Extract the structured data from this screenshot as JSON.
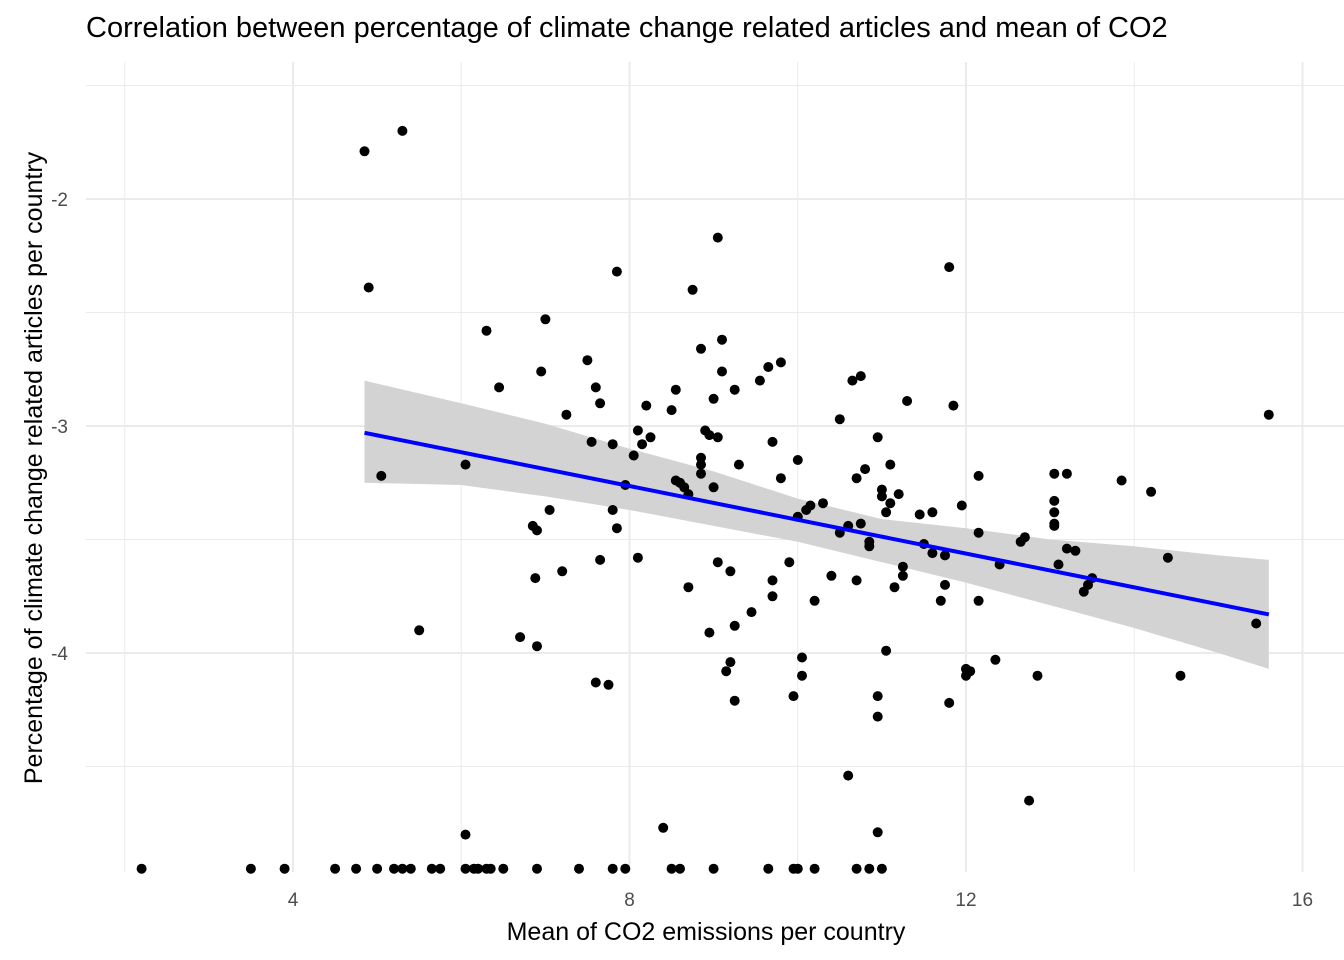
{
  "chart_data": {
    "type": "scatter",
    "title": "Correlation between percentage of climate change related articles and mean of CO2",
    "xlabel": "Mean of CO2 emissions per country",
    "ylabel": "Percentage of climate change related articles per country",
    "xlim": [
      1.6,
      16.3
    ],
    "ylim": [
      -4.95,
      -1.5
    ],
    "x_ticks": [
      4,
      8,
      12,
      16
    ],
    "x_tick_labels": [
      "4",
      "8",
      "12",
      "16"
    ],
    "y_ticks": [
      -4,
      -3,
      -2
    ],
    "y_tick_labels": [
      "-4",
      "-3",
      "-2"
    ],
    "grid": true,
    "legend": "none",
    "colors": {
      "points": "#000000",
      "trend_line": "#0000ff",
      "confidence_band": "#d3d3d3",
      "grid": "#ebebeb"
    },
    "trend_line": {
      "x_start": 4.85,
      "y_start": -3.03,
      "x_end": 15.6,
      "y_end": -3.83
    },
    "confidence_band": {
      "x": [
        4.85,
        6,
        7,
        8,
        9,
        10,
        11,
        12,
        13,
        14,
        15,
        15.6
      ],
      "upper": [
        -2.8,
        -2.9,
        -2.99,
        -3.1,
        -3.2,
        -3.32,
        -3.41,
        -3.45,
        -3.5,
        -3.53,
        -3.57,
        -3.59
      ],
      "lower": [
        -3.25,
        -3.26,
        -3.31,
        -3.37,
        -3.44,
        -3.51,
        -3.6,
        -3.69,
        -3.79,
        -3.89,
        -4.0,
        -4.07
      ]
    },
    "series": [
      {
        "points": [
          [
            4.85,
            -1.79
          ],
          [
            5.3,
            -1.7
          ],
          [
            4.9,
            -2.39
          ],
          [
            5.05,
            -3.22
          ],
          [
            5.5,
            -3.9
          ],
          [
            6.05,
            -3.17
          ],
          [
            6.3,
            -2.58
          ],
          [
            6.45,
            -2.83
          ],
          [
            6.7,
            -3.93
          ],
          [
            6.85,
            -3.44
          ],
          [
            6.9,
            -3.46
          ],
          [
            6.9,
            -3.97
          ],
          [
            6.95,
            -2.76
          ],
          [
            7.0,
            -2.53
          ],
          [
            7.05,
            -3.37
          ],
          [
            7.2,
            -3.64
          ],
          [
            7.25,
            -2.95
          ],
          [
            6.88,
            -3.67
          ],
          [
            7.5,
            -2.71
          ],
          [
            7.55,
            -3.07
          ],
          [
            7.6,
            -2.83
          ],
          [
            7.65,
            -2.9
          ],
          [
            7.65,
            -3.59
          ],
          [
            7.6,
            -4.13
          ],
          [
            7.75,
            -4.14
          ],
          [
            7.8,
            -3.08
          ],
          [
            7.8,
            -3.37
          ],
          [
            7.85,
            -3.45
          ],
          [
            7.85,
            -2.32
          ],
          [
            7.95,
            -3.26
          ],
          [
            8.05,
            -3.13
          ],
          [
            8.1,
            -3.58
          ],
          [
            8.1,
            -3.02
          ],
          [
            8.15,
            -3.08
          ],
          [
            8.2,
            -2.91
          ],
          [
            8.25,
            -3.05
          ],
          [
            8.5,
            -2.93
          ],
          [
            8.55,
            -2.84
          ],
          [
            8.55,
            -3.24
          ],
          [
            8.6,
            -3.25
          ],
          [
            8.65,
            -3.27
          ],
          [
            8.7,
            -3.3
          ],
          [
            8.7,
            -3.71
          ],
          [
            8.75,
            -2.4
          ],
          [
            8.85,
            -3.14
          ],
          [
            8.85,
            -3.17
          ],
          [
            8.85,
            -3.21
          ],
          [
            8.85,
            -2.66
          ],
          [
            8.9,
            -3.02
          ],
          [
            8.95,
            -3.04
          ],
          [
            8.95,
            -3.91
          ],
          [
            9.0,
            -2.88
          ],
          [
            9.0,
            -3.27
          ],
          [
            9.05,
            -3.05
          ],
          [
            9.05,
            -2.17
          ],
          [
            9.1,
            -2.62
          ],
          [
            9.1,
            -2.76
          ],
          [
            9.05,
            -3.6
          ],
          [
            9.15,
            -4.08
          ],
          [
            9.2,
            -3.64
          ],
          [
            9.2,
            -4.04
          ],
          [
            9.25,
            -2.84
          ],
          [
            9.25,
            -3.88
          ],
          [
            9.25,
            -4.21
          ],
          [
            9.3,
            -3.17
          ],
          [
            9.45,
            -3.82
          ],
          [
            9.55,
            -2.8
          ],
          [
            9.65,
            -2.74
          ],
          [
            9.7,
            -3.07
          ],
          [
            9.7,
            -3.68
          ],
          [
            9.7,
            -3.75
          ],
          [
            9.8,
            -2.72
          ],
          [
            9.8,
            -3.23
          ],
          [
            9.9,
            -3.6
          ],
          [
            9.95,
            -4.19
          ],
          [
            10.0,
            -3.4
          ],
          [
            10.0,
            -3.15
          ],
          [
            10.05,
            -4.02
          ],
          [
            10.05,
            -4.1
          ],
          [
            10.1,
            -3.37
          ],
          [
            10.15,
            -3.35
          ],
          [
            10.2,
            -3.77
          ],
          [
            10.3,
            -3.34
          ],
          [
            10.4,
            -3.66
          ],
          [
            10.5,
            -3.47
          ],
          [
            10.5,
            -2.97
          ],
          [
            10.65,
            -2.8
          ],
          [
            10.6,
            -3.44
          ],
          [
            10.7,
            -3.23
          ],
          [
            10.7,
            -3.68
          ],
          [
            10.75,
            -3.43
          ],
          [
            10.75,
            -2.78
          ],
          [
            10.8,
            -3.19
          ],
          [
            10.85,
            -3.51
          ],
          [
            10.85,
            -3.53
          ],
          [
            10.95,
            -3.05
          ],
          [
            10.95,
            -4.19
          ],
          [
            10.95,
            -4.28
          ],
          [
            10.6,
            -4.54
          ],
          [
            11.0,
            -3.28
          ],
          [
            11.0,
            -3.31
          ],
          [
            11.05,
            -3.38
          ],
          [
            11.05,
            -3.99
          ],
          [
            11.1,
            -3.17
          ],
          [
            11.1,
            -3.34
          ],
          [
            11.15,
            -3.71
          ],
          [
            11.2,
            -3.3
          ],
          [
            11.25,
            -3.62
          ],
          [
            11.25,
            -3.66
          ],
          [
            11.3,
            -2.89
          ],
          [
            11.45,
            -3.39
          ],
          [
            11.5,
            -3.52
          ],
          [
            11.6,
            -3.38
          ],
          [
            11.6,
            -3.56
          ],
          [
            11.7,
            -3.77
          ],
          [
            11.75,
            -3.57
          ],
          [
            11.75,
            -3.7
          ],
          [
            11.8,
            -2.3
          ],
          [
            11.8,
            -4.22
          ],
          [
            11.85,
            -2.91
          ],
          [
            11.95,
            -3.35
          ],
          [
            12.0,
            -4.07
          ],
          [
            12.0,
            -4.1
          ],
          [
            12.05,
            -4.08
          ],
          [
            12.15,
            -3.22
          ],
          [
            12.15,
            -3.47
          ],
          [
            12.15,
            -3.77
          ],
          [
            12.35,
            -4.03
          ],
          [
            12.4,
            -3.61
          ],
          [
            12.65,
            -3.51
          ],
          [
            12.7,
            -3.49
          ],
          [
            12.85,
            -4.1
          ],
          [
            12.75,
            -4.65
          ],
          [
            13.05,
            -3.21
          ],
          [
            13.05,
            -3.33
          ],
          [
            13.05,
            -3.38
          ],
          [
            13.05,
            -3.43
          ],
          [
            13.05,
            -3.44
          ],
          [
            13.1,
            -3.61
          ],
          [
            13.2,
            -3.21
          ],
          [
            13.2,
            -3.54
          ],
          [
            13.3,
            -3.55
          ],
          [
            13.4,
            -3.73
          ],
          [
            13.45,
            -3.7
          ],
          [
            13.5,
            -3.67
          ],
          [
            13.85,
            -3.24
          ],
          [
            14.2,
            -3.29
          ],
          [
            14.4,
            -3.58
          ],
          [
            14.55,
            -4.1
          ],
          [
            15.45,
            -3.87
          ],
          [
            15.6,
            -2.95
          ],
          [
            8.4,
            -4.77
          ],
          [
            6.05,
            -4.8
          ],
          [
            10.95,
            -4.79
          ],
          [
            2.2,
            -4.95
          ],
          [
            3.5,
            -4.95
          ],
          [
            3.9,
            -4.95
          ],
          [
            4.5,
            -4.95
          ],
          [
            4.75,
            -4.95
          ],
          [
            5.0,
            -4.95
          ],
          [
            5.2,
            -4.95
          ],
          [
            5.3,
            -4.95
          ],
          [
            5.4,
            -4.95
          ],
          [
            5.65,
            -4.95
          ],
          [
            5.75,
            -4.95
          ],
          [
            6.05,
            -4.95
          ],
          [
            6.15,
            -4.95
          ],
          [
            6.2,
            -4.95
          ],
          [
            6.3,
            -4.95
          ],
          [
            6.35,
            -4.95
          ],
          [
            6.5,
            -4.95
          ],
          [
            6.9,
            -4.95
          ],
          [
            7.4,
            -4.95
          ],
          [
            7.8,
            -4.95
          ],
          [
            7.95,
            -4.95
          ],
          [
            8.5,
            -4.95
          ],
          [
            8.6,
            -4.95
          ],
          [
            9.0,
            -4.95
          ],
          [
            9.65,
            -4.95
          ],
          [
            9.95,
            -4.95
          ],
          [
            10.0,
            -4.95
          ],
          [
            10.2,
            -4.95
          ],
          [
            10.7,
            -4.95
          ],
          [
            10.85,
            -4.95
          ],
          [
            11.0,
            -4.95
          ]
        ]
      }
    ]
  }
}
